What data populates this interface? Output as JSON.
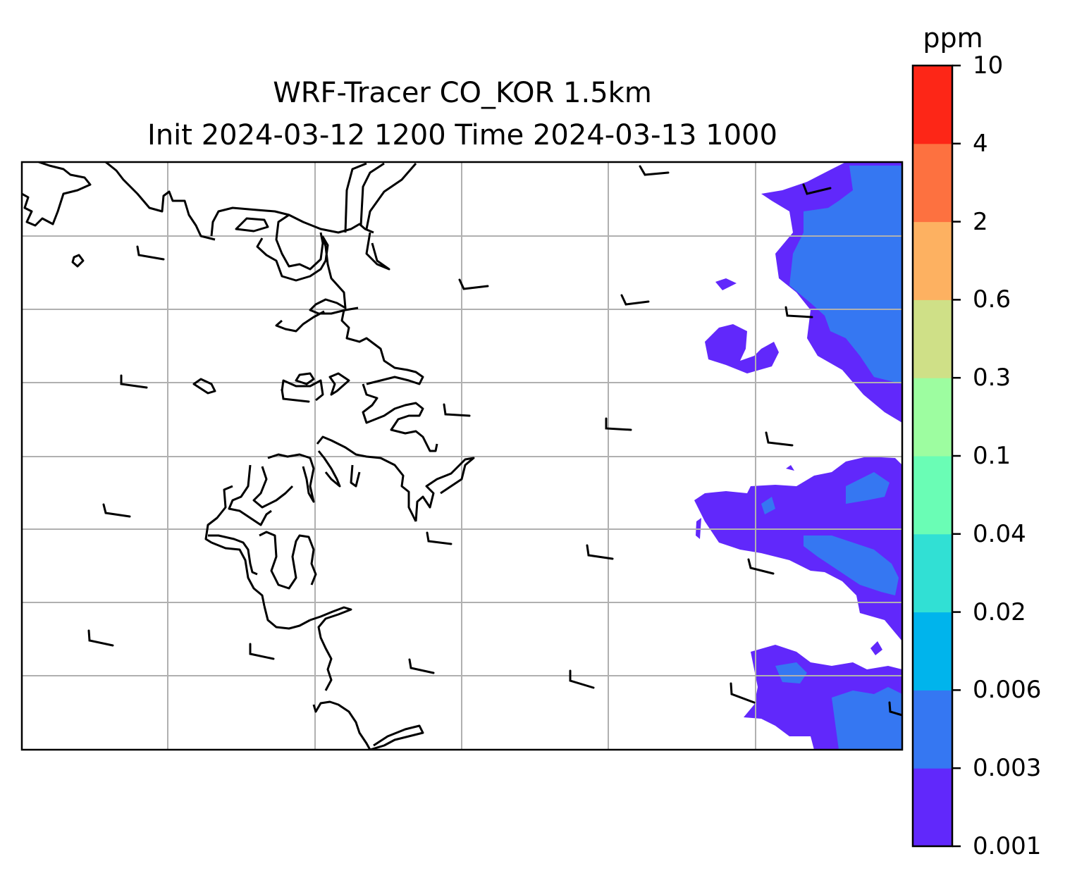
{
  "map": {
    "title_line1": "WRF-Tracer CO_KOR 1.5km",
    "title_line2": "Init 2024-03-12 1200 Time 2024-03-13 1000",
    "variable": "CO_KOR tracer",
    "overlay": "wind barbs",
    "gridlines": true
  },
  "colorbar": {
    "unit": "ppm",
    "levels": [
      "0.001",
      "0.003",
      "0.006",
      "0.02",
      "0.04",
      "0.1",
      "0.3",
      "0.6",
      "2",
      "4",
      "10"
    ],
    "colors": [
      "#6128fb",
      "#3577f2",
      "#00b4ec",
      "#31e0d4",
      "#6afdb5",
      "#9dfda0",
      "#cfe087",
      "#fdb161",
      "#fd7140",
      "#fd2617"
    ]
  },
  "style": {
    "coast_color": "#000000",
    "grid_color": "#b0b0b0"
  }
}
